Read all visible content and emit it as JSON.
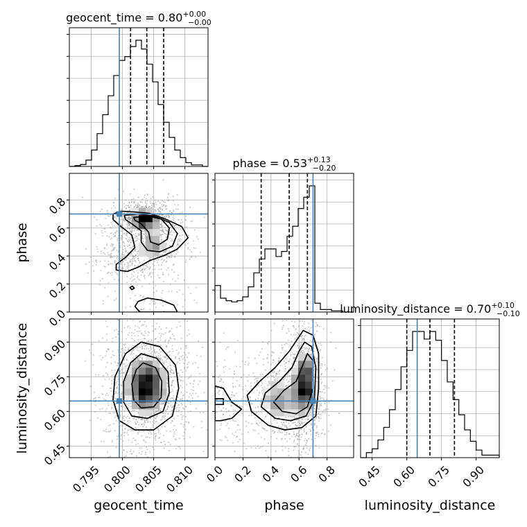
{
  "chart_data": {
    "type": "corner",
    "truth_color": "#4682b4",
    "parameters": [
      {
        "name": "geocent_time",
        "title": {
          "prefix": "geocent_time = ",
          "value": "0.80",
          "plus": "+0.00",
          "minus": "−0.00"
        },
        "range": [
          0.7915,
          0.8137
        ],
        "ticks": [
          0.795,
          0.8,
          0.805,
          0.81
        ],
        "tick_labels": [
          "0.795",
          "0.800",
          "0.805",
          "0.810"
        ],
        "truth": 0.7995,
        "quantiles": [
          0.8013,
          0.8039,
          0.8066
        ],
        "histogram": [
          0,
          0.006,
          0.015,
          0.05,
          0.13,
          0.26,
          0.41,
          0.56,
          0.72,
          0.84,
          0.87,
          0.95,
          1.0,
          0.93,
          0.81,
          0.67,
          0.49,
          0.35,
          0.23,
          0.13,
          0.07,
          0.03,
          0.012,
          0.012,
          0
        ]
      },
      {
        "name": "phase",
        "title": {
          "prefix": "phase = ",
          "value": "0.53",
          "plus": "+0.13",
          "minus": "−0.20"
        },
        "range": [
          0.0,
          0.99
        ],
        "ticks": [
          0.0,
          0.2,
          0.4,
          0.6,
          0.8
        ],
        "tick_labels": [
          "0.0",
          "0.2",
          "0.4",
          "0.6",
          "0.8"
        ],
        "truth": 0.7,
        "quantiles": [
          0.33,
          0.53,
          0.66
        ],
        "histogram": [
          0.21,
          0.11,
          0.09,
          0.08,
          0.09,
          0.12,
          0.2,
          0.31,
          0.42,
          0.5,
          0.5,
          0.44,
          0.48,
          0.6,
          0.68,
          0.82,
          0.91,
          1.0,
          0.07,
          0.02,
          0.02,
          0.01,
          0.01,
          0.0,
          0.0
        ]
      },
      {
        "name": "luminosity_distance",
        "title": {
          "prefix": "luminosity_distance = ",
          "value": "0.70",
          "plus": "+0.10",
          "minus": "−0.10"
        },
        "range": [
          0.4,
          1.0
        ],
        "ticks": [
          0.45,
          0.6,
          0.75,
          0.9
        ],
        "tick_labels": [
          "0.45",
          "0.60",
          "0.75",
          "0.90"
        ],
        "truth": 0.645,
        "quantiles": [
          0.6,
          0.7,
          0.806
        ],
        "histogram": [
          0.0,
          0.04,
          0.07,
          0.14,
          0.24,
          0.38,
          0.54,
          0.72,
          0.85,
          1.0,
          1.0,
          0.94,
          1.0,
          0.93,
          0.77,
          0.6,
          0.46,
          0.34,
          0.22,
          0.13,
          0.06,
          0.02,
          0.02,
          0.02
        ]
      }
    ],
    "pairs": [
      {
        "x": "geocent_time",
        "y": "phase",
        "truth": [
          0.7995,
          0.7
        ],
        "density_peaks": [
          {
            "x": 0.8035,
            "y": 0.66,
            "sx": 0.0016,
            "sy": 0.045,
            "w": 1.0
          },
          {
            "x": 0.8048,
            "y": 0.48,
            "sx": 0.0018,
            "sy": 0.08,
            "w": 0.55
          },
          {
            "x": 0.8005,
            "y": 0.37,
            "sx": 0.0016,
            "sy": 0.05,
            "w": 0.25
          },
          {
            "x": 0.8045,
            "y": 0.06,
            "sx": 0.0025,
            "sy": 0.05,
            "w": 0.1
          }
        ],
        "contours": [
          {
            "level": 1,
            "points": [
              [
                0.7985,
                0.7
              ],
              [
                0.7998,
                0.72
              ],
              [
                0.8018,
                0.715
              ],
              [
                0.8043,
                0.705
              ],
              [
                0.8068,
                0.665
              ],
              [
                0.8095,
                0.61
              ],
              [
                0.8105,
                0.53
              ],
              [
                0.8088,
                0.45
              ],
              [
                0.8065,
                0.4
              ],
              [
                0.8045,
                0.37
              ],
              [
                0.8025,
                0.32
              ],
              [
                0.8008,
                0.29
              ],
              [
                0.799,
                0.3
              ],
              [
                0.799,
                0.34
              ],
              [
                0.8005,
                0.39
              ],
              [
                0.802,
                0.46
              ],
              [
                0.8015,
                0.55
              ],
              [
                0.7995,
                0.62
              ],
              [
                0.7985,
                0.66
              ]
            ]
          },
          {
            "level": 2,
            "points": [
              [
                0.8003,
                0.69
              ],
              [
                0.8025,
                0.7
              ],
              [
                0.805,
                0.685
              ],
              [
                0.8075,
                0.64
              ],
              [
                0.8088,
                0.56
              ],
              [
                0.808,
                0.47
              ],
              [
                0.806,
                0.43
              ],
              [
                0.804,
                0.44
              ],
              [
                0.803,
                0.5
              ],
              [
                0.803,
                0.58
              ],
              [
                0.8015,
                0.63
              ],
              [
                0.8005,
                0.66
              ]
            ]
          },
          {
            "level": 3,
            "points": [
              [
                0.8018,
                0.675
              ],
              [
                0.804,
                0.685
              ],
              [
                0.8062,
                0.665
              ],
              [
                0.8075,
                0.6
              ],
              [
                0.8072,
                0.52
              ],
              [
                0.8058,
                0.48
              ],
              [
                0.8045,
                0.5
              ],
              [
                0.8042,
                0.57
              ],
              [
                0.803,
                0.63
              ],
              [
                0.802,
                0.655
              ]
            ]
          },
          {
            "level": 1,
            "points": [
              [
                0.8025,
                0.075
              ],
              [
                0.804,
                0.1
              ],
              [
                0.8062,
                0.085
              ],
              [
                0.8082,
                0.05
              ],
              [
                0.8088,
                0.0
              ],
              [
                0.8028,
                0.0
              ],
              [
                0.802,
                0.04
              ]
            ]
          },
          {
            "level": 1,
            "points": [
              [
                0.8012,
                0.175
              ],
              [
                0.8016,
                0.185
              ],
              [
                0.8019,
                0.17
              ],
              [
                0.8015,
                0.16
              ]
            ]
          }
        ]
      },
      {
        "x": "geocent_time",
        "y": "luminosity_distance",
        "truth": [
          0.7995,
          0.645
        ],
        "density_peaks": [
          {
            "x": 0.8038,
            "y": 0.71,
            "sx": 0.0022,
            "sy": 0.085,
            "w": 1.0
          }
        ],
        "contours": [
          {
            "level": 1,
            "points": [
              [
                0.803,
                0.9
              ],
              [
                0.806,
                0.88
              ],
              [
                0.8085,
                0.8
              ],
              [
                0.809,
                0.7
              ],
              [
                0.808,
                0.58
              ],
              [
                0.805,
                0.52
              ],
              [
                0.802,
                0.52
              ],
              [
                0.7995,
                0.56
              ],
              [
                0.7985,
                0.65
              ],
              [
                0.7988,
                0.75
              ],
              [
                0.8005,
                0.85
              ]
            ]
          },
          {
            "level": 2,
            "points": [
              [
                0.803,
                0.85
              ],
              [
                0.8055,
                0.83
              ],
              [
                0.8073,
                0.77
              ],
              [
                0.8075,
                0.68
              ],
              [
                0.8065,
                0.6
              ],
              [
                0.804,
                0.57
              ],
              [
                0.8015,
                0.58
              ],
              [
                0.8002,
                0.64
              ],
              [
                0.8002,
                0.73
              ],
              [
                0.8013,
                0.81
              ]
            ]
          },
          {
            "level": 3,
            "points": [
              [
                0.8033,
                0.81
              ],
              [
                0.8053,
                0.79
              ],
              [
                0.8063,
                0.73
              ],
              [
                0.8062,
                0.66
              ],
              [
                0.805,
                0.62
              ],
              [
                0.803,
                0.615
              ],
              [
                0.8018,
                0.65
              ],
              [
                0.8015,
                0.72
              ],
              [
                0.8022,
                0.78
              ]
            ]
          }
        ]
      },
      {
        "x": "phase",
        "y": "luminosity_distance",
        "truth": [
          0.7,
          0.645
        ],
        "density_peaks": [
          {
            "x": 0.64,
            "y": 0.72,
            "sx": 0.05,
            "sy": 0.09,
            "w": 1.0
          },
          {
            "x": 0.45,
            "y": 0.65,
            "sx": 0.09,
            "sy": 0.07,
            "w": 0.55
          },
          {
            "x": 0.06,
            "y": 0.65,
            "sx": 0.06,
            "sy": 0.07,
            "w": 0.2
          }
        ],
        "contours": [
          {
            "level": 1,
            "points": [
              [
                0.63,
                0.95
              ],
              [
                0.7,
                0.93
              ],
              [
                0.74,
                0.85
              ],
              [
                0.74,
                0.7
              ],
              [
                0.72,
                0.58
              ],
              [
                0.62,
                0.53
              ],
              [
                0.5,
                0.52
              ],
              [
                0.38,
                0.54
              ],
              [
                0.26,
                0.6
              ],
              [
                0.23,
                0.67
              ],
              [
                0.32,
                0.73
              ],
              [
                0.43,
                0.79
              ],
              [
                0.53,
                0.86
              ]
            ]
          },
          {
            "level": 2,
            "points": [
              [
                0.64,
                0.9
              ],
              [
                0.69,
                0.88
              ],
              [
                0.72,
                0.79
              ],
              [
                0.71,
                0.65
              ],
              [
                0.65,
                0.58
              ],
              [
                0.54,
                0.56
              ],
              [
                0.43,
                0.57
              ],
              [
                0.33,
                0.62
              ],
              [
                0.36,
                0.68
              ],
              [
                0.46,
                0.73
              ],
              [
                0.55,
                0.79
              ],
              [
                0.6,
                0.86
              ]
            ]
          },
          {
            "level": 3,
            "points": [
              [
                0.66,
                0.85
              ],
              [
                0.7,
                0.82
              ],
              [
                0.7,
                0.7
              ],
              [
                0.66,
                0.62
              ],
              [
                0.58,
                0.59
              ],
              [
                0.48,
                0.6
              ],
              [
                0.42,
                0.64
              ],
              [
                0.49,
                0.69
              ],
              [
                0.58,
                0.73
              ],
              [
                0.62,
                0.79
              ]
            ]
          },
          {
            "level": 1,
            "points": [
              [
                0.0,
                0.71
              ],
              [
                0.06,
                0.7
              ],
              [
                0.12,
                0.64
              ],
              [
                0.19,
                0.61
              ],
              [
                0.12,
                0.57
              ],
              [
                0.04,
                0.56
              ],
              [
                0.0,
                0.56
              ]
            ]
          },
          {
            "level": 1,
            "points": [
              [
                0.0,
                0.63
              ],
              [
                0.06,
                0.63
              ],
              [
                0.06,
                0.655
              ],
              [
                0.0,
                0.655
              ]
            ]
          }
        ]
      }
    ],
    "axis_labels": {
      "x": [
        "geocent_time",
        "phase",
        "luminosity_distance"
      ],
      "y": [
        "phase",
        "luminosity_distance"
      ]
    },
    "grid": true
  }
}
